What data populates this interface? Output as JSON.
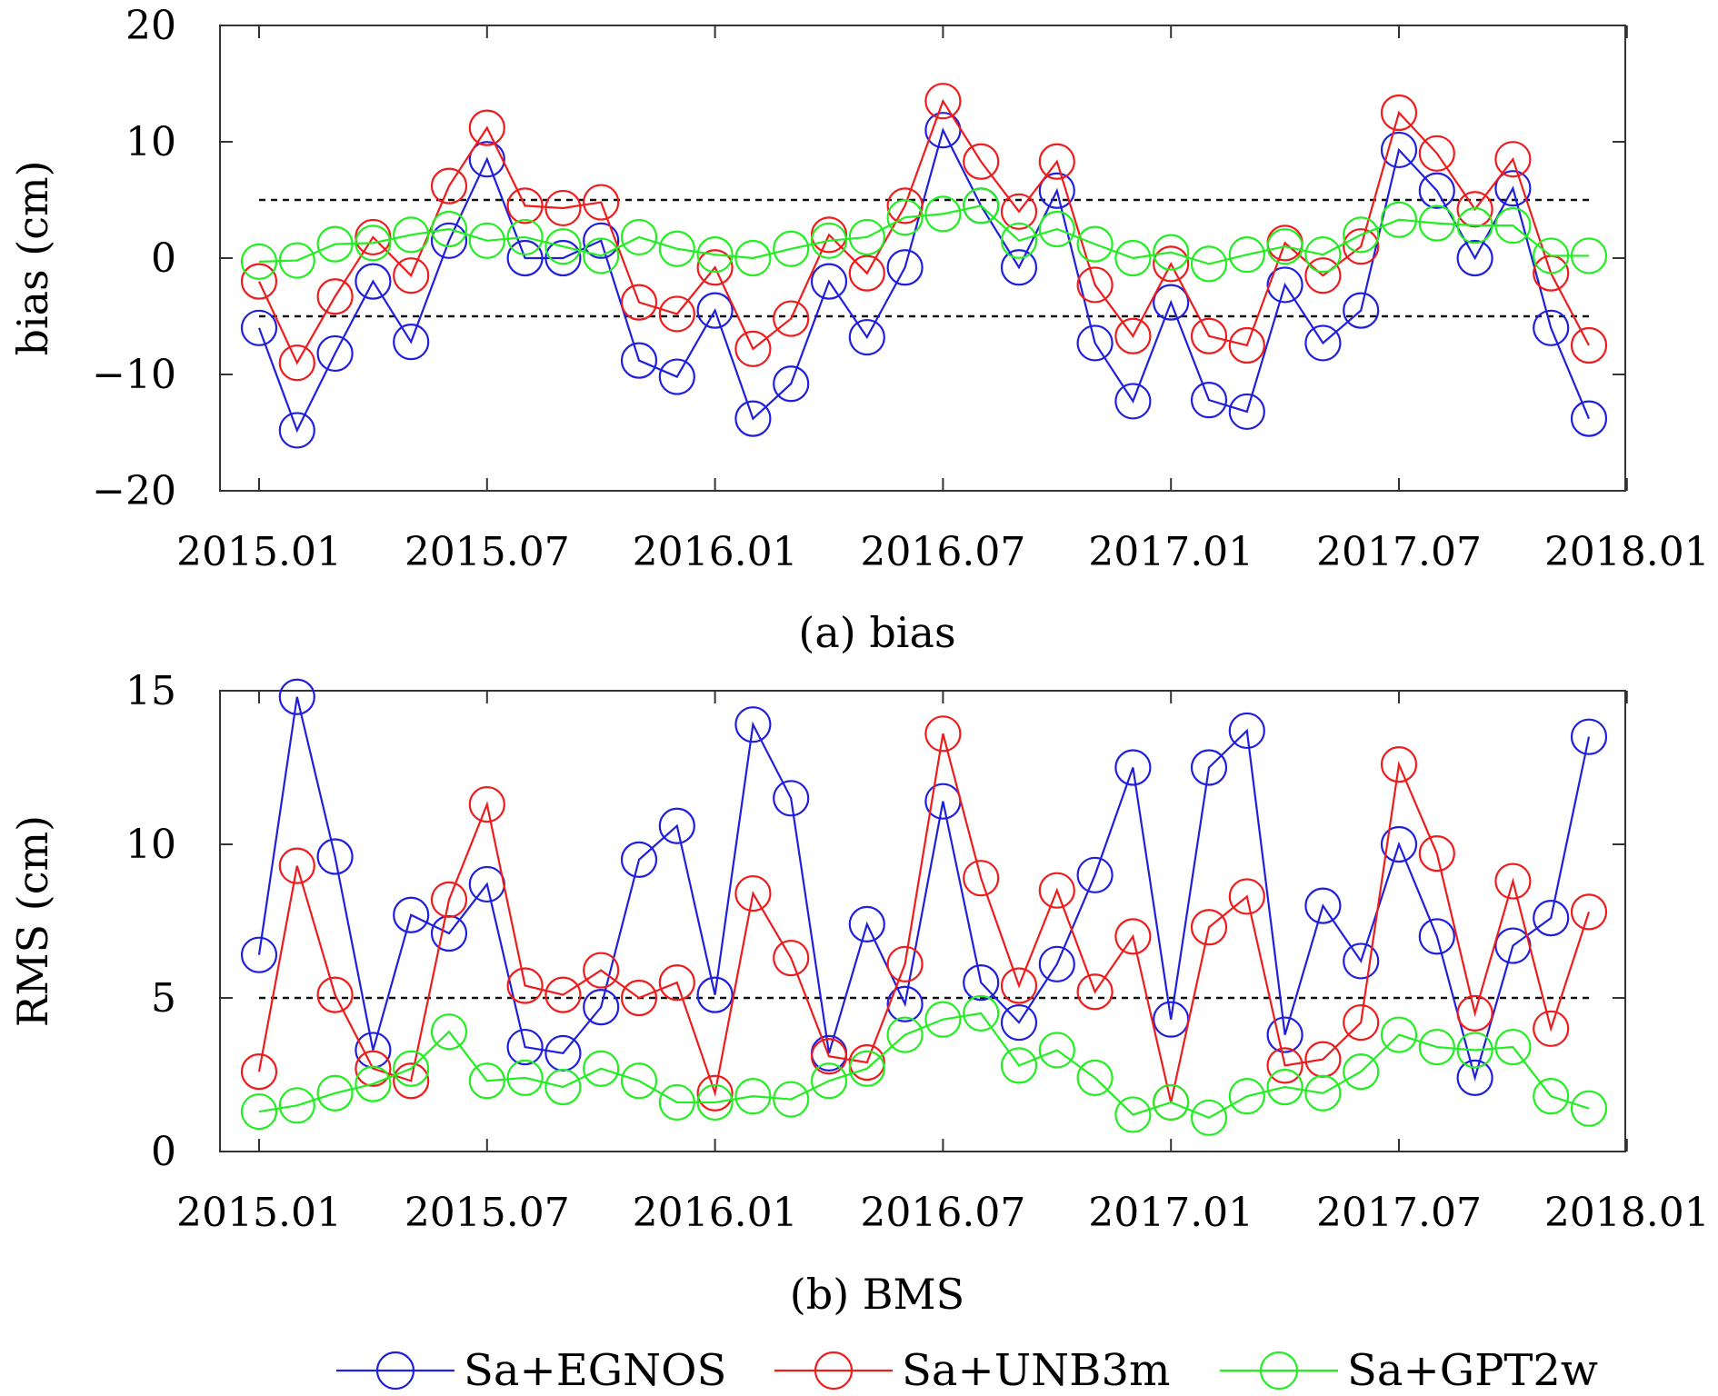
{
  "legend": [
    {
      "label": "Sa+EGNOS",
      "color": "#1f1fdd"
    },
    {
      "label": "Sa+UNB3m",
      "color": "#ee1c1c"
    },
    {
      "label": "Sa+GPT2w",
      "color": "#22ee22"
    }
  ],
  "chart_data": [
    {
      "type": "line",
      "caption": "(a) bias",
      "ylabel": "bias (cm)",
      "xlabel": "",
      "ylim": [
        -20,
        20
      ],
      "yticks": [
        -20,
        -10,
        0,
        10,
        20
      ],
      "ytick_labels": [
        "−20",
        "−10",
        "0",
        "10",
        "20"
      ],
      "xticks": [
        0,
        6,
        12,
        18,
        24,
        30,
        36
      ],
      "xtick_labels": [
        "2015.01",
        "2015.07",
        "2016.01",
        "2016.07",
        "2017.01",
        "2017.07",
        "2018.01"
      ],
      "x": [
        0,
        1,
        2,
        3,
        4,
        5,
        6,
        7,
        8,
        9,
        10,
        11,
        12,
        13,
        14,
        15,
        16,
        17,
        18,
        19,
        20,
        21,
        22,
        23,
        24,
        25,
        26,
        27,
        28,
        29,
        30,
        31,
        32,
        33,
        34,
        35
      ],
      "reference_lines": [
        5,
        -5
      ],
      "grid": false,
      "series": [
        {
          "name": "Sa+EGNOS",
          "color": "#1f1fdd",
          "values": [
            -6.0,
            -14.8,
            -8.2,
            -2.0,
            -7.2,
            1.5,
            8.5,
            0.0,
            0.0,
            1.5,
            -8.8,
            -10.2,
            -4.5,
            -13.8,
            -10.8,
            -2.0,
            -6.8,
            -0.8,
            11.0,
            4.5,
            -0.8,
            5.8,
            -7.3,
            -12.3,
            -3.8,
            -12.2,
            -13.2,
            -2.3,
            -7.3,
            -4.5,
            9.3,
            5.8,
            0.0,
            6.0,
            -6.0,
            -13.8
          ]
        },
        {
          "name": "Sa+UNB3m",
          "color": "#ee1c1c",
          "values": [
            -2.0,
            -9.0,
            -3.3,
            1.8,
            -1.5,
            6.2,
            11.2,
            4.5,
            4.3,
            4.8,
            -3.8,
            -4.8,
            -0.8,
            -7.8,
            -5.2,
            2.0,
            -1.3,
            4.5,
            13.5,
            8.3,
            4.0,
            8.3,
            -2.3,
            -6.7,
            -0.5,
            -6.7,
            -7.5,
            1.3,
            -1.5,
            1.0,
            12.5,
            9.0,
            4.2,
            8.5,
            -1.3,
            -7.5
          ]
        },
        {
          "name": "Sa+GPT2w",
          "color": "#22ee22",
          "values": [
            -0.3,
            -0.2,
            1.2,
            1.3,
            2.0,
            2.5,
            1.5,
            1.8,
            1.0,
            0.2,
            1.8,
            0.8,
            0.3,
            0.0,
            0.8,
            1.5,
            1.8,
            3.5,
            3.8,
            4.5,
            1.5,
            2.5,
            1.2,
            0.0,
            0.5,
            -0.5,
            0.3,
            1.0,
            0.3,
            2.0,
            3.3,
            3.0,
            2.8,
            2.8,
            0.2,
            0.2
          ]
        }
      ]
    },
    {
      "type": "line",
      "caption": "(b) BMS",
      "ylabel": "RMS (cm)",
      "xlabel": "",
      "ylim": [
        0,
        15
      ],
      "yticks": [
        0,
        5,
        10,
        15
      ],
      "ytick_labels": [
        "0",
        "5",
        "10",
        "15"
      ],
      "xticks": [
        0,
        6,
        12,
        18,
        24,
        30,
        36
      ],
      "xtick_labels": [
        "2015.01",
        "2015.07",
        "2016.01",
        "2016.07",
        "2017.01",
        "2017.07",
        "2018.01"
      ],
      "x": [
        0,
        1,
        2,
        3,
        4,
        5,
        6,
        7,
        8,
        9,
        10,
        11,
        12,
        13,
        14,
        15,
        16,
        17,
        18,
        19,
        20,
        21,
        22,
        23,
        24,
        25,
        26,
        27,
        28,
        29,
        30,
        31,
        32,
        33,
        34,
        35
      ],
      "reference_lines": [
        5
      ],
      "grid": false,
      "series": [
        {
          "name": "Sa+EGNOS",
          "color": "#1f1fdd",
          "values": [
            6.4,
            14.8,
            9.6,
            3.3,
            7.7,
            7.1,
            8.7,
            3.4,
            3.2,
            4.7,
            9.5,
            10.6,
            5.1,
            13.9,
            11.5,
            3.2,
            7.4,
            4.8,
            11.4,
            5.5,
            4.2,
            6.1,
            9.0,
            12.5,
            4.3,
            12.5,
            13.7,
            3.8,
            8.0,
            6.2,
            10.0,
            7.0,
            2.4,
            6.7,
            7.6,
            13.5
          ]
        },
        {
          "name": "Sa+UNB3m",
          "color": "#ee1c1c",
          "values": [
            2.6,
            9.3,
            5.1,
            2.7,
            2.3,
            8.2,
            11.3,
            5.4,
            5.1,
            5.9,
            5.0,
            5.5,
            1.9,
            8.4,
            6.3,
            3.1,
            2.9,
            6.1,
            13.6,
            8.9,
            5.4,
            8.5,
            5.2,
            7.0,
            1.6,
            7.3,
            8.3,
            2.8,
            3.0,
            4.2,
            12.6,
            9.7,
            4.5,
            8.8,
            4.0,
            7.8
          ]
        },
        {
          "name": "Sa+GPT2w",
          "color": "#22ee22",
          "values": [
            1.3,
            1.5,
            1.9,
            2.2,
            2.7,
            3.9,
            2.3,
            2.4,
            2.1,
            2.7,
            2.3,
            1.6,
            1.6,
            1.8,
            1.7,
            2.3,
            2.7,
            3.8,
            4.3,
            4.5,
            2.8,
            3.3,
            2.4,
            1.2,
            1.6,
            1.1,
            1.8,
            2.1,
            1.9,
            2.6,
            3.8,
            3.4,
            3.3,
            3.4,
            1.8,
            1.4
          ]
        }
      ]
    }
  ]
}
